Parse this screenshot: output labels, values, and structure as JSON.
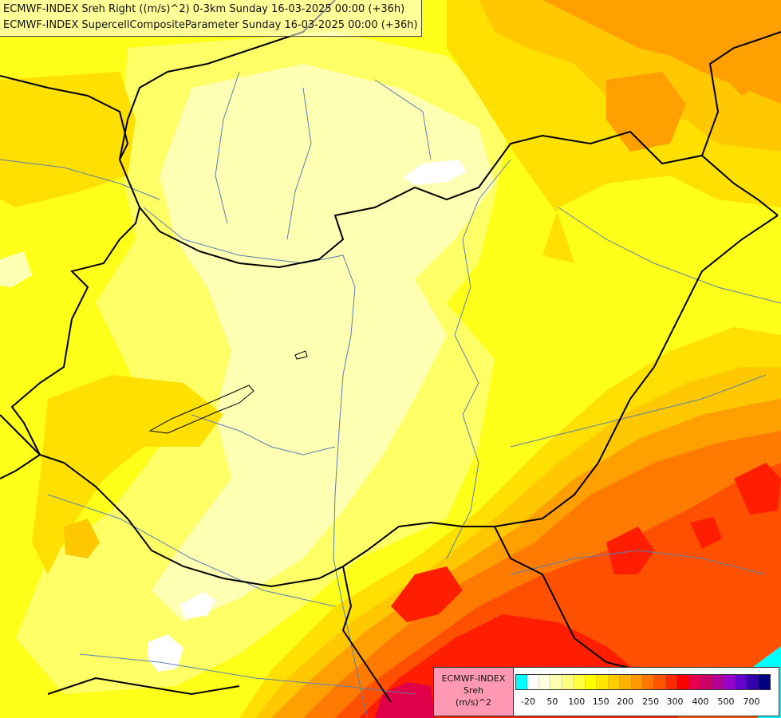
{
  "titles": {
    "line1": "ECMWF-INDEX Sreh Right ((m/s)^2) 0-3km Sunday 16-03-2025 00:00 (+36h)",
    "line2": "ECMWF-INDEX SupercellCompositeParameter Sunday 16-03-2025 00:00 (+36h)"
  },
  "legend": {
    "line1": "ECMWF-INDEX",
    "line2": "Sreh",
    "line3": "(m/s)^2",
    "colors": [
      "#00ffff",
      "#ffffff",
      "#ffffe0",
      "#ffffb0",
      "#ffff80",
      "#ffff40",
      "#ffff00",
      "#ffe600",
      "#ffcc00",
      "#ffb300",
      "#ff9900",
      "#ff7700",
      "#ff5500",
      "#ff2a00",
      "#ff0000",
      "#e6004d",
      "#cc0066",
      "#b30099",
      "#9900cc",
      "#6600cc",
      "#3300aa",
      "#000080"
    ],
    "tick_labels": [
      "-20",
      "50",
      "100",
      "150",
      "200",
      "250",
      "300",
      "400",
      "500",
      "700"
    ]
  },
  "map_colors": {
    "pale": "#ffffb3",
    "light": "#ffff66",
    "yellow": "#ffff1a",
    "gold": "#ffe000",
    "amber": "#ffc800",
    "orange": "#ffa000",
    "dark_orange": "#ff7a00",
    "red_orange": "#ff5000",
    "red": "#ff1e00",
    "crimson": "#e0004a",
    "white": "#ffffff",
    "cyan": "#00ffff"
  }
}
